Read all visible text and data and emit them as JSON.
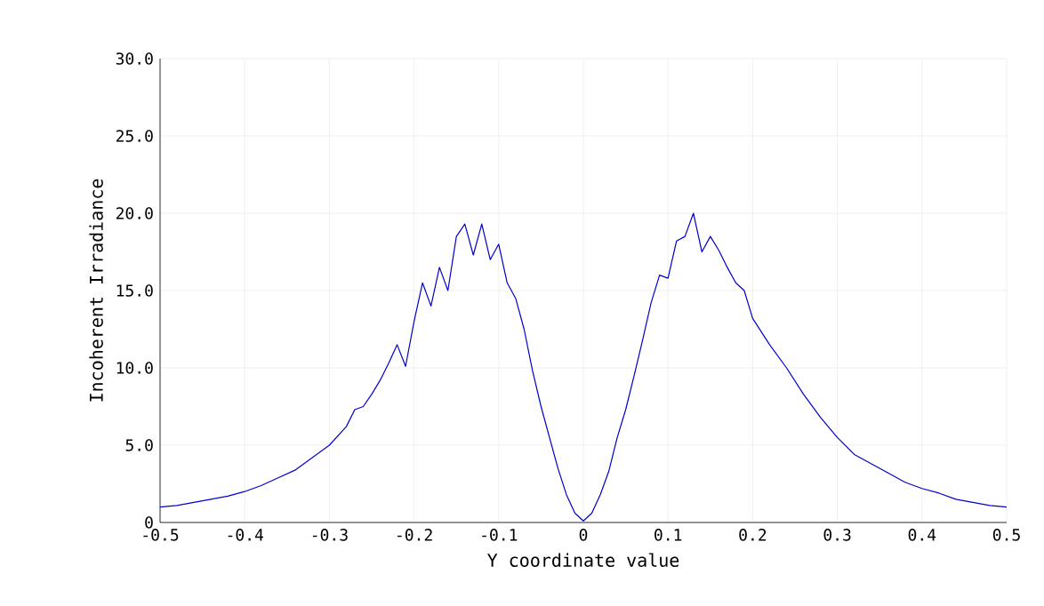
{
  "chart_data": {
    "type": "line",
    "xlabel": "Y coordinate value",
    "ylabel": "Incoherent Irradiance",
    "xlim": [
      -0.5,
      0.5
    ],
    "ylim": [
      0,
      30
    ],
    "xticks": [
      -0.5,
      -0.4,
      -0.3,
      -0.2,
      -0.1,
      0,
      0.1,
      0.2,
      0.3,
      0.4,
      0.5
    ],
    "yticks": [
      0,
      {
        "value": 5,
        "label": "5.0"
      },
      {
        "value": 10,
        "label": "10.0"
      },
      {
        "value": 15,
        "label": "15.0"
      },
      {
        "value": 20,
        "label": "20.0"
      },
      {
        "value": 25,
        "label": "25.0"
      },
      {
        "value": 30,
        "label": "30.0"
      }
    ],
    "grid": true,
    "marker": "none",
    "line_style": "solid",
    "series": [
      {
        "color": "#0000cc",
        "x": [
          -0.5,
          -0.48,
          -0.46,
          -0.44,
          -0.42,
          -0.4,
          -0.38,
          -0.36,
          -0.34,
          -0.32,
          -0.3,
          -0.28,
          -0.27,
          -0.26,
          -0.25,
          -0.24,
          -0.23,
          -0.22,
          -0.21,
          -0.2,
          -0.19,
          -0.18,
          -0.17,
          -0.16,
          -0.15,
          -0.14,
          -0.13,
          -0.12,
          -0.11,
          -0.1,
          -0.09,
          -0.08,
          -0.07,
          -0.06,
          -0.05,
          -0.04,
          -0.03,
          -0.02,
          -0.01,
          0,
          0.01,
          0.02,
          0.03,
          0.04,
          0.05,
          0.06,
          0.07,
          0.08,
          0.09,
          0.1,
          0.11,
          0.12,
          0.13,
          0.14,
          0.15,
          0.16,
          0.17,
          0.18,
          0.19,
          0.2,
          0.22,
          0.24,
          0.26,
          0.28,
          0.3,
          0.32,
          0.34,
          0.36,
          0.38,
          0.4,
          0.42,
          0.44,
          0.46,
          0.48,
          0.5
        ],
        "values": [
          1.0,
          1.1,
          1.3,
          1.5,
          1.7,
          2.0,
          2.4,
          2.9,
          3.4,
          4.2,
          5.0,
          6.2,
          7.3,
          7.5,
          8.3,
          9.2,
          10.3,
          11.5,
          10.1,
          13.0,
          15.5,
          14.0,
          16.5,
          15.0,
          18.5,
          19.3,
          17.3,
          19.3,
          17.0,
          18.0,
          15.5,
          14.5,
          12.5,
          9.8,
          7.5,
          5.5,
          3.5,
          1.8,
          0.6,
          0.1,
          0.6,
          1.8,
          3.3,
          5.5,
          7.3,
          9.5,
          11.8,
          14.2,
          16.0,
          15.8,
          18.2,
          18.5,
          20.0,
          17.5,
          18.5,
          17.6,
          16.5,
          15.5,
          15.0,
          13.2,
          11.5,
          10.0,
          8.3,
          6.8,
          5.5,
          4.4,
          3.8,
          3.2,
          2.6,
          2.2,
          1.9,
          1.5,
          1.3,
          1.1,
          1.0
        ]
      }
    ]
  }
}
